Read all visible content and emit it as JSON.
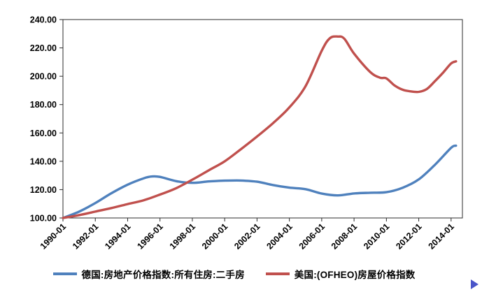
{
  "chart_data": {
    "type": "line",
    "title": "",
    "xlabel": "",
    "ylabel": "",
    "grid": false,
    "legend_position": "bottom",
    "xlim": [
      1990,
      2014.7
    ],
    "ylim": [
      100,
      240
    ],
    "x_ticks": [
      1990,
      1992,
      1994,
      1996,
      1998,
      2000,
      2002,
      2004,
      2006,
      2008,
      2010,
      2012,
      2014
    ],
    "x_tick_labels": [
      "1990-01",
      "1992-01",
      "1994-01",
      "1996-01",
      "1998-01",
      "2000-01",
      "2002-01",
      "2004-01",
      "2006-01",
      "2008-01",
      "2010-01",
      "2012-01",
      "2014-01"
    ],
    "y_ticks": [
      100,
      120,
      140,
      160,
      180,
      200,
      220,
      240
    ],
    "y_tick_labels": [
      "100.00",
      "120.00",
      "140.00",
      "160.00",
      "180.00",
      "200.00",
      "220.00",
      "240.00"
    ],
    "series": [
      {
        "name": "德国:房地产价格指数:所有住房:二手房",
        "color": "#4F81BD",
        "points": [
          [
            1990,
            100
          ],
          [
            1991,
            104.5
          ],
          [
            1992,
            110.5
          ],
          [
            1993,
            117.5
          ],
          [
            1994,
            123.5
          ],
          [
            1995,
            128
          ],
          [
            1995.5,
            129.3
          ],
          [
            1996,
            129
          ],
          [
            1997,
            126
          ],
          [
            1998,
            124.8
          ],
          [
            1999,
            125.8
          ],
          [
            2000,
            126.3
          ],
          [
            2001,
            126.4
          ],
          [
            2002,
            125.6
          ],
          [
            2003,
            123.2
          ],
          [
            2004,
            121.4
          ],
          [
            2005,
            120.3
          ],
          [
            2006,
            117.2
          ],
          [
            2007,
            115.9
          ],
          [
            2008,
            117.3
          ],
          [
            2009,
            117.8
          ],
          [
            2010,
            118.2
          ],
          [
            2011,
            121.3
          ],
          [
            2012,
            127.2
          ],
          [
            2013,
            137.5
          ],
          [
            2014,
            149.5
          ],
          [
            2014.3,
            151
          ]
        ]
      },
      {
        "name": "美国:(OFHEO)房屋价格指数",
        "color": "#C0504D",
        "points": [
          [
            1990,
            100
          ],
          [
            1991,
            102
          ],
          [
            1992,
            104.5
          ],
          [
            1993,
            107
          ],
          [
            1994,
            109.8
          ],
          [
            1995,
            112.5
          ],
          [
            1996,
            116.5
          ],
          [
            1997,
            121
          ],
          [
            1998,
            127
          ],
          [
            1999,
            133.5
          ],
          [
            2000,
            140
          ],
          [
            2001,
            148.5
          ],
          [
            2002,
            157.5
          ],
          [
            2003,
            167
          ],
          [
            2004,
            178
          ],
          [
            2005,
            193
          ],
          [
            2006,
            218
          ],
          [
            2006.5,
            226.8
          ],
          [
            2007,
            228
          ],
          [
            2007.4,
            226.5
          ],
          [
            2008,
            216
          ],
          [
            2009,
            203
          ],
          [
            2009.6,
            199
          ],
          [
            2010,
            198.5
          ],
          [
            2010.5,
            193.5
          ],
          [
            2011,
            190.5
          ],
          [
            2011.5,
            189.3
          ],
          [
            2012,
            189
          ],
          [
            2012.5,
            191
          ],
          [
            2013,
            196.5
          ],
          [
            2013.5,
            202.5
          ],
          [
            2014,
            209
          ],
          [
            2014.3,
            210.5
          ]
        ]
      }
    ]
  },
  "decorations": {
    "corner_arrow_color": "#4A55C9",
    "plot_border_color": "#2B2B2B",
    "axis_text_color": "#000000"
  }
}
